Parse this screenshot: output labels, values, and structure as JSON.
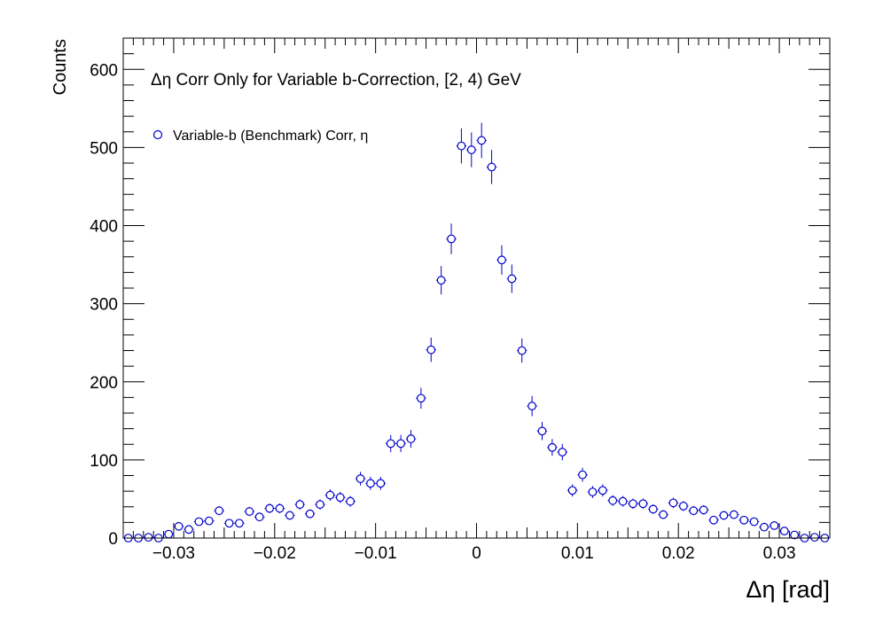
{
  "chart_data": {
    "type": "scatter",
    "title": "Δη Corr Only for Variable b-Correction, [2, 4) GeV",
    "xlabel": "Δη  [rad]",
    "ylabel": "Counts",
    "xlim": [
      -0.035,
      0.035
    ],
    "ylim": [
      0,
      640
    ],
    "x_ticks": [
      -0.03,
      -0.02,
      -0.01,
      0,
      0.01,
      0.02,
      0.03
    ],
    "x_tick_labels": [
      "−0.03",
      "−0.02",
      "−0.01",
      "0",
      "0.01",
      "0.02",
      "0.03"
    ],
    "y_ticks": [
      0,
      100,
      200,
      300,
      400,
      500,
      600
    ],
    "y_tick_labels": [
      "0",
      "100",
      "200",
      "300",
      "400",
      "500",
      "600"
    ],
    "grid": false,
    "legend_position": "top-left",
    "series": [
      {
        "name": "Variable-b (Benchmark) Corr, η",
        "color": "#0000cc",
        "marker": "open-circle",
        "x": [
          -0.0345,
          -0.0335,
          -0.0325,
          -0.0315,
          -0.0305,
          -0.0295,
          -0.0285,
          -0.0275,
          -0.0265,
          -0.0255,
          -0.0245,
          -0.0235,
          -0.0225,
          -0.0215,
          -0.0205,
          -0.0195,
          -0.0185,
          -0.0175,
          -0.0165,
          -0.0155,
          -0.0145,
          -0.0135,
          -0.0125,
          -0.0115,
          -0.0105,
          -0.0095,
          -0.0085,
          -0.0075,
          -0.0065,
          -0.0055,
          -0.0045,
          -0.0035,
          -0.0025,
          -0.0015,
          -0.0005,
          0.0005,
          0.0015,
          0.0025,
          0.0035,
          0.0045,
          0.0055,
          0.0065,
          0.0075,
          0.0085,
          0.0095,
          0.0105,
          0.0115,
          0.0125,
          0.0135,
          0.0145,
          0.0155,
          0.0165,
          0.0175,
          0.0185,
          0.0195,
          0.0205,
          0.0215,
          0.0225,
          0.0235,
          0.0245,
          0.0255,
          0.0265,
          0.0275,
          0.0285,
          0.0295,
          0.0305,
          0.0315,
          0.0325,
          0.0335,
          0.0345
        ],
        "y": [
          0,
          0,
          1,
          0,
          5,
          15,
          11,
          21,
          22,
          35,
          19,
          19,
          34,
          27,
          38,
          38,
          29,
          43,
          31,
          43,
          55,
          52,
          47,
          76,
          70,
          70,
          121,
          121,
          127,
          179,
          241,
          330,
          383,
          502,
          497,
          509,
          475,
          356,
          332,
          240,
          169,
          137,
          116,
          110,
          61,
          81,
          59,
          61,
          48,
          47,
          44,
          44,
          37,
          30,
          45,
          41,
          35,
          36,
          23,
          29,
          30,
          23,
          21,
          14,
          16,
          9,
          4,
          0,
          1,
          0
        ]
      }
    ]
  }
}
